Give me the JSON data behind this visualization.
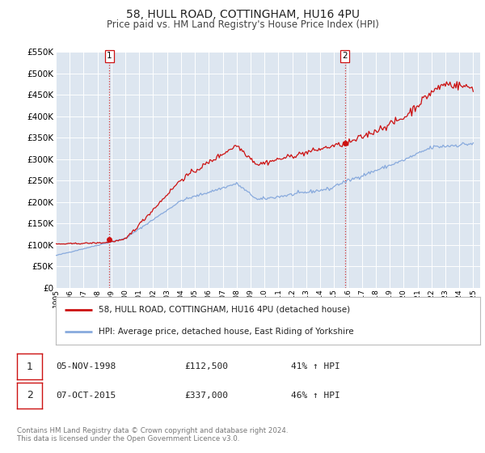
{
  "title": "58, HULL ROAD, COTTINGHAM, HU16 4PU",
  "subtitle": "Price paid vs. HM Land Registry's House Price Index (HPI)",
  "title_fontsize": 10,
  "subtitle_fontsize": 8.5,
  "background_color": "#ffffff",
  "plot_bg_color": "#dde6f0",
  "grid_color": "#ffffff",
  "ylim": [
    0,
    550000
  ],
  "yticks": [
    0,
    50000,
    100000,
    150000,
    200000,
    250000,
    300000,
    350000,
    400000,
    450000,
    500000,
    550000
  ],
  "xlim_start": 1995.0,
  "xlim_end": 2025.5,
  "red_line_color": "#cc1111",
  "blue_line_color": "#88aadd",
  "marker_color": "#cc1111",
  "sale1_x": 1998.845,
  "sale1_y": 112500,
  "sale1_label": "1",
  "sale1_date": "05-NOV-1998",
  "sale1_price": "£112,500",
  "sale1_hpi": "41% ↑ HPI",
  "sale1_vline_x": 1998.845,
  "sale2_x": 2015.77,
  "sale2_y": 337000,
  "sale2_label": "2",
  "sale2_date": "07-OCT-2015",
  "sale2_price": "£337,000",
  "sale2_hpi": "46% ↑ HPI",
  "sale2_vline_x": 2015.77,
  "legend_label_red": "58, HULL ROAD, COTTINGHAM, HU16 4PU (detached house)",
  "legend_label_blue": "HPI: Average price, detached house, East Riding of Yorkshire",
  "footer_text": "Contains HM Land Registry data © Crown copyright and database right 2024.\nThis data is licensed under the Open Government Licence v3.0.",
  "xticks": [
    1995,
    1996,
    1997,
    1998,
    1999,
    2000,
    2001,
    2002,
    2003,
    2004,
    2005,
    2006,
    2007,
    2008,
    2009,
    2010,
    2011,
    2012,
    2013,
    2014,
    2015,
    2016,
    2017,
    2018,
    2019,
    2020,
    2021,
    2022,
    2023,
    2024,
    2025
  ]
}
